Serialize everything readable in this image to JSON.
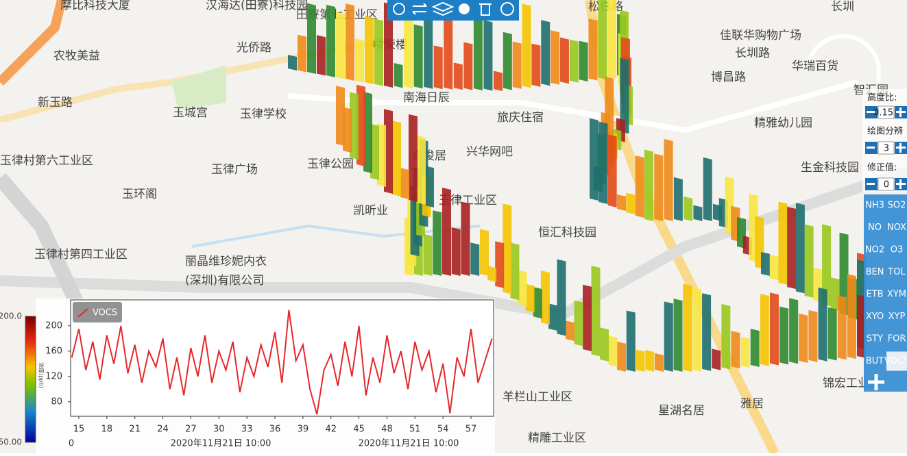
{
  "map": {
    "labels": [
      "摩比科技大厦",
      "汉海达(田寮)科技园",
      "田寮第七工业区",
      "农牧美益",
      "光侨路",
      "精荣楼",
      "佳联华购物广场",
      "长圳路",
      "新玉路",
      "玉城宫",
      "玉律学校",
      "南海日辰",
      "华瑞百货",
      "博昌路",
      "精雅幼儿园",
      "玉律村第六工业区",
      "玉律广场",
      "玉律公园",
      "合俊居",
      "兴华网吧",
      "旅庆住宿",
      "生金科技园",
      "玉环阁",
      "凯昕业",
      "玉律工业区",
      "恒汇科技园",
      "玉律村第四工业区",
      "丽晶维珍妮内衣",
      "(深圳)有限公司",
      "羊栏山工业区",
      "星湖名居",
      "雅居",
      "精雕工业区",
      "锦宏工业园",
      "松白路",
      "长圳",
      "智汇园"
    ]
  },
  "controls": {
    "height_ratio": {
      "label": "高度比:",
      "value": "0.15"
    },
    "resolution": {
      "label": "绘图分辨",
      "value": "3"
    },
    "correction": {
      "label": "修正值:",
      "value": "0"
    },
    "pollutants": [
      "NH3",
      "SO2",
      "NO",
      "NOX",
      "NO2",
      "O3",
      "BEN",
      "TOL",
      "ETB",
      "XYM",
      "XYO",
      "XYP",
      "STY",
      "FOR",
      "BUT",
      "VOCS"
    ],
    "selected": "VOCS"
  },
  "colorbar": {
    "label": "浓度(ppb)",
    "ticks": [
      {
        "value": 200,
        "label": "200.0"
      },
      {
        "value": 50,
        "label": "50.00"
      }
    ]
  },
  "chart_data": {
    "type": "line",
    "x": [
      14.25,
      15,
      15.75,
      16.5,
      17.25,
      18,
      18.75,
      19.5,
      20.25,
      21,
      21.75,
      22.5,
      23.25,
      24,
      24.75,
      25.5,
      26.25,
      27,
      27.75,
      28.5,
      29.25,
      30,
      30.75,
      31.5,
      32.25,
      33,
      33.75,
      34.5,
      35.25,
      36,
      36.75,
      37.5,
      38.25,
      39,
      39.75,
      40.5,
      41.25,
      42,
      42.75,
      43.5,
      44.25,
      45,
      45.75,
      46.5,
      47.25,
      48,
      48.75,
      49.5,
      50.25,
      51,
      51.75,
      52.5,
      53.25,
      54,
      54.75,
      55.5,
      56.25,
      57,
      57.75,
      58.5,
      59.25
    ],
    "series": [
      {
        "name": "VOCS",
        "color": "#e8262b",
        "values": [
          150,
          195,
          130,
          175,
          115,
          185,
          140,
          200,
          125,
          170,
          110,
          160,
          135,
          180,
          100,
          150,
          90,
          165,
          120,
          185,
          110,
          160,
          130,
          175,
          95,
          150,
          120,
          170,
          135,
          190,
          110,
          225,
          145,
          170,
          100,
          60,
          130,
          155,
          105,
          175,
          120,
          200,
          90,
          150,
          110,
          185,
          125,
          160,
          100,
          175,
          130,
          160,
          95,
          140,
          62,
          150,
          120,
          195,
          110,
          145,
          180
        ]
      }
    ],
    "xlim": [
      14.12,
      59.42
    ],
    "ylim": [
      57,
      241
    ],
    "xticks": [
      15,
      18,
      21,
      24,
      27,
      30,
      33,
      36,
      39,
      42,
      45,
      48,
      51,
      54,
      57
    ],
    "yticks": [
      80,
      120,
      160,
      200
    ],
    "x_sublabels": [
      "0",
      "2020年11月21日 10:00",
      "2020年11月21日 10:00"
    ]
  }
}
